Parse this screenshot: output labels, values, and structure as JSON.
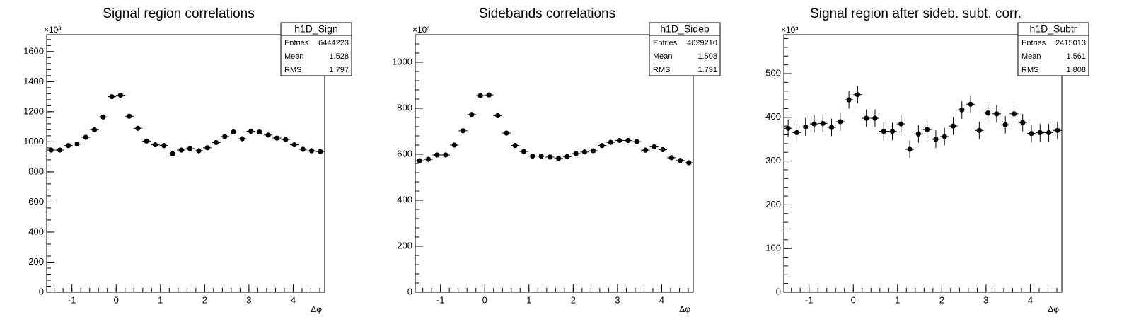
{
  "chart_data": [
    {
      "type": "histogram-points",
      "title": "Signal region correlations",
      "x_label": "Δφ",
      "y_multiplier": "×10³",
      "color": "#000000",
      "xlim": [
        -1.5708,
        4.7124
      ],
      "xticks": [
        -1,
        0,
        1,
        2,
        3,
        4
      ],
      "ylim": [
        0,
        1712
      ],
      "yticks": [
        0,
        200,
        400,
        600,
        800,
        1000,
        1200,
        1400,
        1600
      ],
      "values": [
        945,
        945,
        975,
        985,
        1030,
        1080,
        1165,
        1300,
        1310,
        1170,
        1090,
        1005,
        980,
        975,
        920,
        945,
        955,
        940,
        960,
        995,
        1035,
        1065,
        1020,
        1070,
        1065,
        1045,
        1025,
        1015,
        980,
        950,
        940,
        935
      ],
      "stats": {
        "name": "h1D_Sign",
        "rows": [
          [
            "Entries",
            6444223
          ],
          [
            "Mean",
            1.528
          ],
          [
            "RMS",
            1.797
          ]
        ]
      }
    },
    {
      "type": "histogram-points",
      "title": "Sidebands correlations",
      "x_label": "Δφ",
      "y_multiplier": "×10³",
      "color": "#000000",
      "xlim": [
        -1.5708,
        4.7124
      ],
      "xticks": [
        -1,
        0,
        1,
        2,
        3,
        4
      ],
      "ylim": [
        0,
        1120
      ],
      "yticks": [
        0,
        200,
        400,
        600,
        800,
        1000
      ],
      "values": [
        572,
        578,
        597,
        597,
        640,
        702,
        773,
        855,
        858,
        768,
        692,
        638,
        612,
        592,
        592,
        588,
        582,
        590,
        603,
        610,
        615,
        638,
        652,
        660,
        660,
        655,
        618,
        632,
        620,
        585,
        573,
        563
      ],
      "stats": {
        "name": "h1D_Sideb",
        "rows": [
          [
            "Entries",
            4029210
          ],
          [
            "Mean",
            1.508
          ],
          [
            "RMS",
            1.791
          ]
        ]
      }
    },
    {
      "type": "histogram-points",
      "title": "Signal region after sideb. subt. corr.",
      "x_label": "Δφ",
      "y_multiplier": "×10³",
      "color": "#000000",
      "xlim": [
        -1.5708,
        4.7124
      ],
      "xticks": [
        -1,
        0,
        1,
        2,
        3,
        4
      ],
      "ylim": [
        0,
        589
      ],
      "yticks": [
        0,
        100,
        200,
        300,
        400,
        500
      ],
      "values": [
        375,
        365,
        378,
        385,
        386,
        377,
        390,
        440,
        452,
        398,
        398,
        368,
        368,
        385,
        327,
        362,
        372,
        350,
        356,
        380,
        417,
        430,
        370,
        410,
        408,
        383,
        408,
        388,
        363,
        365,
        365,
        370
      ],
      "error": 20,
      "stats": {
        "name": "h1D_Subtr",
        "rows": [
          [
            "Entries",
            2415013
          ],
          [
            "Mean",
            1.561
          ],
          [
            "RMS",
            1.808
          ]
        ]
      }
    }
  ]
}
